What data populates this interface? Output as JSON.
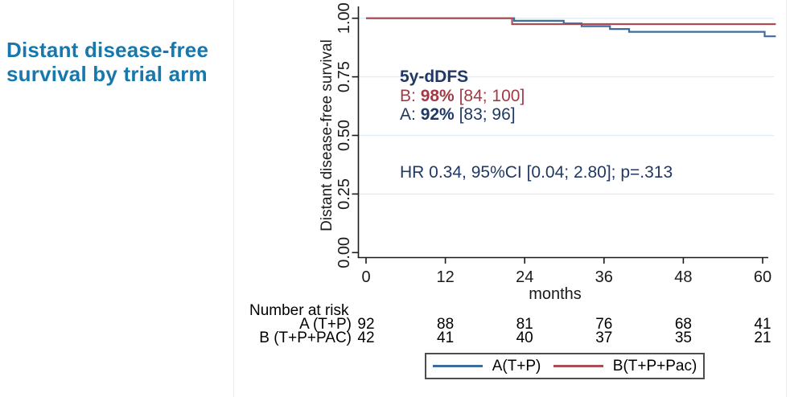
{
  "page": {
    "title": "Distant disease-free survival by trial arm",
    "title_color": "#1678ac"
  },
  "chart_data": {
    "type": "line",
    "subtype": "kaplan-meier-step",
    "xlabel": "months",
    "ylabel": "Distant disease-free survival",
    "xlim": [
      0,
      62
    ],
    "ylim": [
      0,
      1
    ],
    "xticks": [
      0,
      12,
      24,
      36,
      48,
      60
    ],
    "yticks": [
      {
        "value": 0.0,
        "label": "0.00"
      },
      {
        "value": 0.25,
        "label": "0.25"
      },
      {
        "value": 0.5,
        "label": "0.50"
      },
      {
        "value": 0.75,
        "label": "0.75"
      },
      {
        "value": 1.0,
        "label": "1.00"
      }
    ],
    "grid": "horizontal-at-0.25-0.50-0.75-1.00",
    "gridline_values": [
      0.25,
      0.5,
      0.75,
      1.0
    ],
    "gridline_color": "#e2ecf3",
    "axis_color": "#1a1a1a",
    "series": [
      {
        "name": "A(T+P)",
        "color": "#3f6d9b",
        "steps": [
          [
            0,
            1.0
          ],
          [
            22.4,
            0.989
          ],
          [
            29.9,
            0.978
          ],
          [
            32.6,
            0.966
          ],
          [
            36.9,
            0.954
          ],
          [
            39.8,
            0.942
          ],
          [
            60.3,
            0.923
          ],
          [
            62,
            0.923
          ]
        ]
      },
      {
        "name": "B(T+P+Pac)",
        "color": "#a94e55",
        "steps": [
          [
            0,
            1.0
          ],
          [
            22.1,
            0.975
          ],
          [
            62,
            0.975
          ]
        ]
      }
    ],
    "legend": {
      "position": "bottom-center-boxed",
      "items": [
        {
          "label": "A(T+P)",
          "color": "#3f6d9b"
        },
        {
          "label": "B(T+P+Pac)",
          "color": "#a94e55"
        }
      ]
    },
    "annotations": {
      "heading": "5y-dDFS",
      "heading_color": "#1f3864",
      "lines": [
        {
          "prefix": "B:",
          "value": "98%",
          "ci": "[84; 100]",
          "color": "#a23b46"
        },
        {
          "prefix": "A:",
          "value": "92%",
          "ci": "[83; 96]",
          "color": "#1f3864"
        }
      ],
      "hr_text": "HR 0.34, 95%CI [0.04; 2.80]; p=.313",
      "hr_color": "#1f3864"
    },
    "risk_table": {
      "heading": "Number at risk",
      "times": [
        0,
        12,
        24,
        36,
        48,
        60
      ],
      "rows": [
        {
          "label": "A (T+P)",
          "counts": [
            "92",
            "88",
            "81",
            "76",
            "68",
            "41"
          ]
        },
        {
          "label": "B (T+P+PAC)",
          "counts": [
            "42",
            "41",
            "40",
            "37",
            "35",
            "21"
          ]
        }
      ]
    }
  }
}
